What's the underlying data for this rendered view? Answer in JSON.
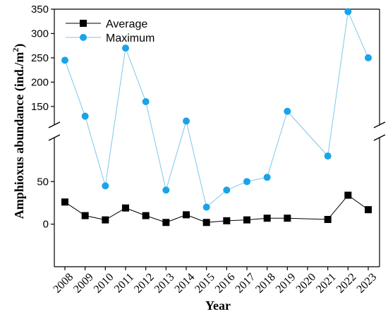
{
  "chart_data": {
    "type": "line",
    "xlabel": "Year",
    "ylabel": "Amphioxus abundance (ind./m",
    "ylabel_sup": "2",
    "ylabel_close": ")",
    "categories": [
      "2008",
      "2009",
      "2010",
      "2011",
      "2012",
      "2013",
      "2014",
      "2015",
      "2016",
      "2017",
      "2018",
      "2019",
      "2020",
      "2021",
      "2022",
      "2023"
    ],
    "axis_break": {
      "lower_range": [
        -50,
        100
      ],
      "upper_range": [
        115,
        350
      ]
    },
    "y_ticks_lower": [
      "0",
      "50"
    ],
    "y_ticks_upper": [
      "150",
      "200",
      "250",
      "300",
      "350"
    ],
    "legend": {
      "position": "top-left"
    },
    "grid": false,
    "series": [
      {
        "name": "Average",
        "color": "#000000",
        "marker": "square",
        "values": [
          26,
          10,
          5,
          19,
          10,
          2,
          11,
          2,
          4,
          5,
          7,
          7,
          null,
          5.5,
          34,
          17
        ]
      },
      {
        "name": "Maximum",
        "color": "#1aa3e8",
        "line_color": "#7fc6ec",
        "marker": "circle",
        "values": [
          245,
          130,
          45,
          270,
          160,
          40,
          120,
          20,
          40,
          50,
          55,
          140,
          null,
          80,
          345,
          250
        ]
      }
    ]
  }
}
